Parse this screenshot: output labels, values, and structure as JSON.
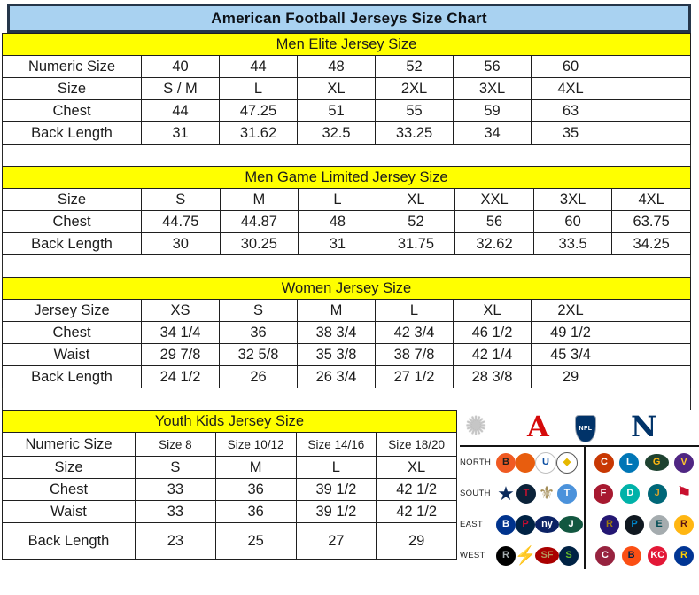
{
  "title": "American Football Jerseys Size Chart",
  "tables": [
    {
      "header": "Men Elite Jersey Size",
      "rows": [
        [
          "Numeric Size",
          "40",
          "44",
          "48",
          "52",
          "56",
          "60",
          ""
        ],
        [
          "Size",
          "S / M",
          "L",
          "XL",
          "2XL",
          "3XL",
          "4XL",
          ""
        ],
        [
          "Chest",
          "44",
          "47.25",
          "51",
          "55",
          "59",
          "63",
          ""
        ],
        [
          "Back Length",
          "31",
          "31.62",
          "32.5",
          "33.25",
          "34",
          "35",
          ""
        ]
      ]
    },
    {
      "header": "Men Game Limited Jersey Size",
      "rows": [
        [
          "Size",
          "S",
          "M",
          "L",
          "XL",
          "XXL",
          "3XL",
          "4XL"
        ],
        [
          "Chest",
          "44.75",
          "44.87",
          "48",
          "52",
          "56",
          "60",
          "63.75"
        ],
        [
          "Back Length",
          "30",
          "30.25",
          "31",
          "31.75",
          "32.62",
          "33.5",
          "34.25"
        ]
      ]
    },
    {
      "header": "Women Jersey Size",
      "rows": [
        [
          "Jersey Size",
          "XS",
          "S",
          "M",
          "L",
          "XL",
          "2XL",
          ""
        ],
        [
          "Chest",
          "34 1/4",
          "36",
          "38 3/4",
          "42 3/4",
          "46 1/2",
          "49 1/2",
          ""
        ],
        [
          "Waist",
          "29 7/8",
          "32 5/8",
          "35 3/8",
          "38 7/8",
          "42 1/4",
          "45 3/4",
          ""
        ],
        [
          "Back Length",
          "24 1/2",
          "26",
          "26 3/4",
          "27 1/2",
          "28 3/8",
          "29",
          ""
        ]
      ]
    },
    {
      "header": "Youth Kids Jersey Size",
      "rows": [
        [
          "Numeric Size",
          "Size 8",
          "Size 10/12",
          "Size 14/16",
          "Size 18/20"
        ],
        [
          "Size",
          "S",
          "M",
          "L",
          "XL"
        ],
        [
          "Chest",
          "33",
          "36",
          "39 1/2",
          "42 1/2"
        ],
        [
          "Waist",
          "33",
          "36",
          "39 1/2",
          "42 1/2"
        ],
        [
          "Back Length",
          "23",
          "25",
          "27",
          "29"
        ]
      ]
    }
  ],
  "nfl": {
    "probowl_glyph": "✺",
    "afc_letter": "A",
    "shield_label": "NFL",
    "nfc_letter": "N",
    "rows": [
      {
        "label": "NORTH",
        "left": [
          {
            "name": "bengals-logo",
            "bg": "#f05a22",
            "glyph": "B",
            "fg": "#1d1d1d"
          },
          {
            "name": "browns-helmet-logo",
            "bg": "#e85d0e",
            "glyph": "",
            "fg": "#ffffff"
          },
          {
            "name": "colts-logo",
            "bg": "#ffffff",
            "glyph": "U",
            "fg": "#0b4ea2",
            "br": "#bfbfbf"
          },
          {
            "name": "steelers-logo",
            "bg": "#ffffff",
            "glyph": "◆",
            "fg": "#e6b800",
            "br": "#555555"
          }
        ],
        "right": [
          {
            "name": "bears-logo",
            "bg": "#c83803",
            "glyph": "C",
            "fg": "#ffffff"
          },
          {
            "name": "lions-logo",
            "bg": "#0076b6",
            "glyph": "L",
            "fg": "#ffffff"
          },
          {
            "name": "packers-logo",
            "bg": "#1e4230",
            "glyph": "G",
            "fg": "#ffb612",
            "oval": true
          },
          {
            "name": "vikings-logo",
            "bg": "#4f2683",
            "glyph": "V",
            "fg": "#ffc62f"
          }
        ]
      },
      {
        "label": "SOUTH",
        "left": [
          {
            "name": "cowboys-star-logo",
            "plain": true,
            "glyph": "★",
            "fg": "#0a2a5c",
            "size": 22
          },
          {
            "name": "texans-logo",
            "bg": "#0b2239",
            "glyph": "T",
            "fg": "#c41230"
          },
          {
            "name": "saints-fleur-logo",
            "plain": true,
            "glyph": "⚜",
            "fg": "#a28b55",
            "size": 21
          },
          {
            "name": "titans-logo",
            "bg": "#4b92db",
            "glyph": "T",
            "fg": "#ffffff"
          }
        ],
        "right": [
          {
            "name": "falcons-logo",
            "bg": "#a71930",
            "glyph": "F",
            "fg": "#ffffff"
          },
          {
            "name": "dolphins-logo",
            "bg": "#00b2a9",
            "glyph": "D",
            "fg": "#ffffff"
          },
          {
            "name": "jaguars-logo",
            "bg": "#006778",
            "glyph": "J",
            "fg": "#d7a22a"
          },
          {
            "name": "buccaneers-flag-logo",
            "plain": true,
            "glyph": "⚑",
            "fg": "#c8102e",
            "size": 20
          }
        ]
      },
      {
        "label": "EAST",
        "left": [
          {
            "name": "bills-logo",
            "bg": "#00338d",
            "glyph": "B",
            "fg": "#ffffff"
          },
          {
            "name": "patriots-logo",
            "bg": "#002244",
            "glyph": "P",
            "fg": "#c60c30"
          },
          {
            "name": "giants-logo",
            "bg": "#0b2265",
            "glyph": "ny",
            "fg": "#ffffff",
            "oval": true
          },
          {
            "name": "jets-logo",
            "bg": "#125740",
            "glyph": "J",
            "fg": "#ffffff",
            "oval": true
          }
        ],
        "right": [
          {
            "name": "ravens-logo",
            "bg": "#241773",
            "glyph": "R",
            "fg": "#9e7c0c"
          },
          {
            "name": "panthers-logo",
            "bg": "#101820",
            "glyph": "P",
            "fg": "#0085ca"
          },
          {
            "name": "eagles-logo",
            "bg": "#a5acaf",
            "glyph": "E",
            "fg": "#004c54"
          },
          {
            "name": "redskins-logo",
            "bg": "#ffb612",
            "glyph": "R",
            "fg": "#5a1414"
          }
        ]
      },
      {
        "label": "WEST",
        "left": [
          {
            "name": "raiders-logo",
            "bg": "#000000",
            "glyph": "R",
            "fg": "#a5acaf"
          },
          {
            "name": "chargers-bolt-logo",
            "plain": true,
            "glyph": "⚡",
            "fg": "#ffc20e",
            "size": 20
          },
          {
            "name": "49ers-logo",
            "bg": "#aa0000",
            "glyph": "SF",
            "fg": "#b3995d",
            "oval": true
          },
          {
            "name": "seahawks-logo",
            "bg": "#002244",
            "glyph": "S",
            "fg": "#69be28"
          }
        ],
        "right": [
          {
            "name": "cardinals-logo",
            "bg": "#97233f",
            "glyph": "C",
            "fg": "#ffffff"
          },
          {
            "name": "broncos-logo",
            "bg": "#fb4f14",
            "glyph": "B",
            "fg": "#002244"
          },
          {
            "name": "chiefs-logo",
            "bg": "#e31837",
            "glyph": "KC",
            "fg": "#ffffff"
          },
          {
            "name": "rams-logo",
            "bg": "#003594",
            "glyph": "R",
            "fg": "#ffd100"
          }
        ]
      }
    ]
  },
  "colors": {
    "title_bar_bg": "#a9d2f1",
    "title_border": "#25364a",
    "header_yellow": "#ffff00",
    "grid_line": "#1f1f1f",
    "afc_red": "#d50a0a",
    "nfc_blue": "#013369"
  }
}
